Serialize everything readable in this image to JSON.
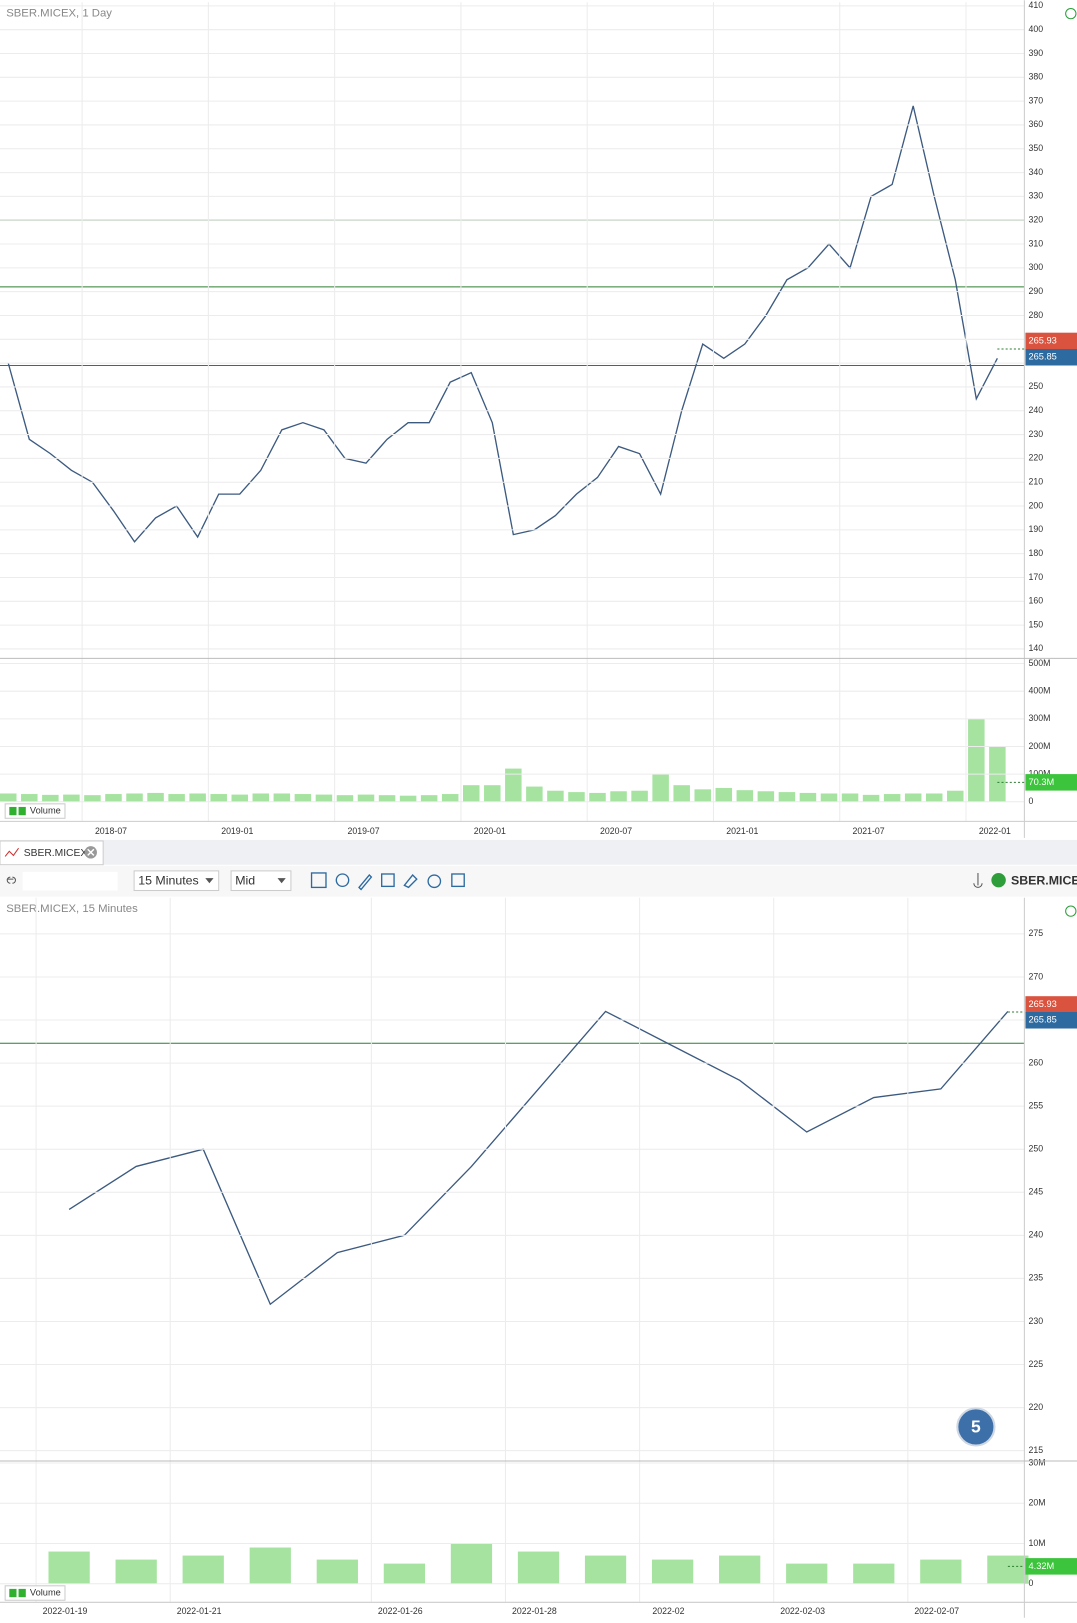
{
  "chart_data": [
    {
      "type": "line",
      "title": "SBER.MICEX, 1 Day",
      "x": [
        "2018-03",
        "2018-04",
        "2018-05",
        "2018-06",
        "2018-07",
        "2018-08",
        "2018-09",
        "2018-10",
        "2018-11",
        "2018-12",
        "2019-01",
        "2019-02",
        "2019-03",
        "2019-04",
        "2019-05",
        "2019-06",
        "2019-07",
        "2019-08",
        "2019-09",
        "2019-10",
        "2019-11",
        "2019-12",
        "2020-01",
        "2020-02",
        "2020-03",
        "2020-04",
        "2020-05",
        "2020-06",
        "2020-07",
        "2020-08",
        "2020-09",
        "2020-10",
        "2020-11",
        "2020-12",
        "2021-01",
        "2021-02",
        "2021-03",
        "2021-04",
        "2021-05",
        "2021-06",
        "2021-07",
        "2021-08",
        "2021-09",
        "2021-10",
        "2021-11",
        "2021-12",
        "2022-01",
        "2022-02"
      ],
      "xticks": [
        "2018-07",
        "2019-01",
        "2019-07",
        "2020-01",
        "2020-07",
        "2021-01",
        "2021-07",
        "2022-01"
      ],
      "values": [
        260,
        228,
        222,
        215,
        210,
        198,
        185,
        195,
        200,
        187,
        205,
        205,
        215,
        232,
        235,
        232,
        220,
        218,
        228,
        235,
        235,
        252,
        256,
        235,
        188,
        190,
        196,
        205,
        212,
        225,
        222,
        205,
        240,
        268,
        262,
        268,
        280,
        295,
        300,
        310,
        300,
        330,
        335,
        368,
        330,
        295,
        245,
        262
      ],
      "color": "#3c5a80",
      "ylim": [
        136.9,
        411.5
      ],
      "yticks": [
        140,
        150,
        160,
        170,
        180,
        190,
        200,
        210,
        220,
        230,
        240,
        250,
        260,
        270,
        280,
        290,
        300,
        310,
        320,
        330,
        340,
        350,
        360,
        370,
        380,
        390,
        400,
        410
      ],
      "hlines": [
        320,
        292,
        259
      ],
      "hline_color": "#2e7d32",
      "price_labels": [
        265.93,
        265.85
      ],
      "price_label_colors": [
        "#d9533f",
        "#2d6aa0"
      ],
      "grid": true
    },
    {
      "type": "bar",
      "name": "Volume",
      "values": [
        30,
        28,
        25,
        26,
        24,
        28,
        30,
        32,
        28,
        30,
        28,
        26,
        30,
        30,
        28,
        26,
        24,
        26,
        24,
        22,
        24,
        28,
        60,
        60,
        120,
        55,
        40,
        35,
        32,
        38,
        40,
        100,
        60,
        45,
        50,
        42,
        38,
        35,
        32,
        30,
        30,
        25,
        28,
        30,
        30,
        40,
        300,
        200
      ],
      "color": "#a6e3a0",
      "ylim": [
        0,
        500
      ],
      "yticks": [
        0,
        {
          "value": 100,
          "label": "100M"
        },
        {
          "value": 200,
          "label": "200M"
        },
        {
          "value": 300,
          "label": "300M"
        },
        {
          "value": 400,
          "label": "400M"
        },
        {
          "value": 500,
          "label": "500M"
        }
      ],
      "last_value": {
        "value": 70.3,
        "label": "70.3M"
      }
    },
    {
      "type": "line",
      "title": "SBER.MICEX, 15 Minutes",
      "x": [
        "2022-01-19",
        "2022-01-20",
        "2022-01-21",
        "2022-01-24",
        "2022-01-25",
        "2022-01-26",
        "2022-01-27",
        "2022-01-28",
        "2022-01-31",
        "2022-02-01",
        "2022-02-02",
        "2022-02-03",
        "2022-02-04",
        "2022-02-07",
        "2022-02-08"
      ],
      "xticks": [
        {
          "value": "2022-01-19",
          "label": "2022-01-19"
        },
        {
          "value": "2022-01-21",
          "label": "2022-01-21"
        },
        {
          "value": "2022-01-26",
          "label": "2022-01-26"
        },
        {
          "value": "2022-01-28",
          "label": "2022-01-28"
        },
        {
          "value": "2022-02-01",
          "label": "2022-02"
        },
        {
          "value": "2022-02-03",
          "label": "2022-02-03"
        },
        {
          "value": "2022-02-07",
          "label": "2022-02-07"
        }
      ],
      "values": [
        243,
        248,
        250,
        232,
        238,
        240,
        248,
        257,
        266,
        262,
        258,
        252,
        256,
        257,
        266
      ],
      "color": "#3c5a80",
      "ylim": [
        213.8,
        279.2
      ],
      "yticks": [
        215,
        220,
        225,
        230,
        235,
        240,
        245,
        250,
        255,
        260,
        265,
        270,
        275
      ],
      "hlines": [
        262.3
      ],
      "hline_color": "#2e7d32",
      "price_labels": [
        265.93,
        265.85
      ],
      "price_label_colors": [
        "#d9533f",
        "#2d6aa0"
      ],
      "grid": true
    },
    {
      "type": "bar",
      "name": "Volume",
      "values": [
        8,
        6,
        7,
        9,
        6,
        5,
        10,
        8,
        7,
        6,
        7,
        5,
        5,
        6,
        7
      ],
      "color": "#a6e3a0",
      "ylim": [
        0,
        30
      ],
      "yticks": [
        0,
        {
          "value": 10,
          "label": "10M"
        },
        {
          "value": 20,
          "label": "20M"
        },
        {
          "value": 30,
          "label": "30M"
        }
      ],
      "last_value": {
        "value": 4.32,
        "label": "4.32M"
      }
    }
  ],
  "toolbar": {
    "tab": "SBER.MICEX",
    "interval": "15 Minutes",
    "price_mode": "Mid",
    "symbol": "SBER.MICEX"
  },
  "badge": "5"
}
